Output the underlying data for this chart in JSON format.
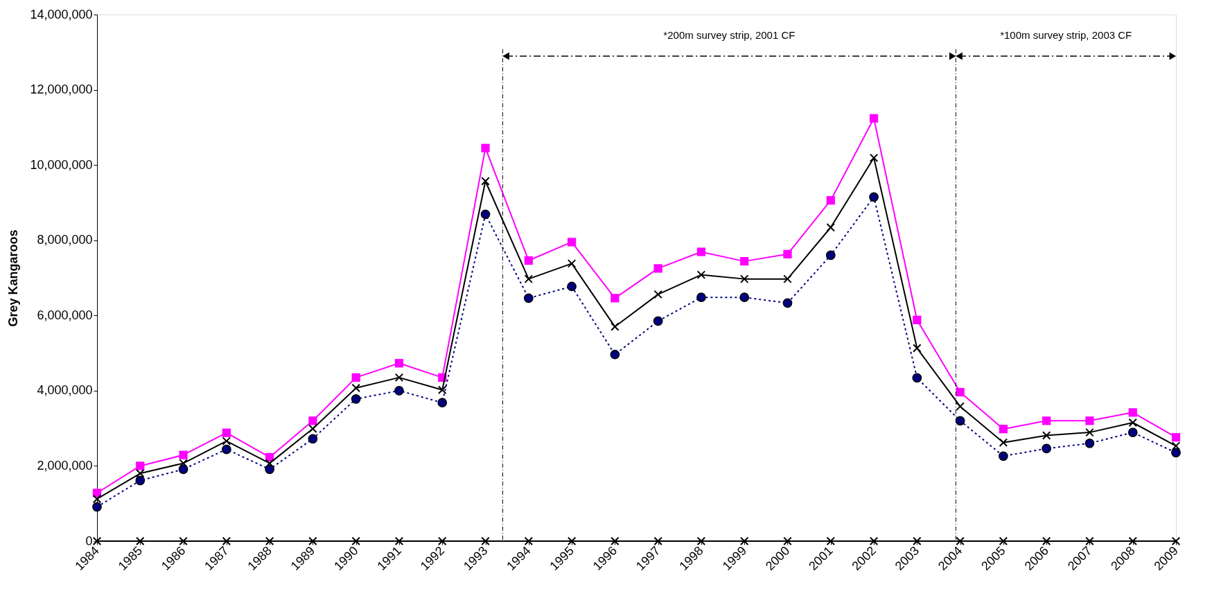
{
  "chart_data": {
    "type": "line",
    "ylabel": "Grey Kangaroos",
    "x": [
      1984,
      1985,
      1986,
      1987,
      1988,
      1989,
      1990,
      1991,
      1992,
      1993,
      1994,
      1995,
      1996,
      1997,
      1998,
      1999,
      2000,
      2001,
      2002,
      2003,
      2004,
      2005,
      2006,
      2007,
      2008,
      2009
    ],
    "xlim": [
      1984,
      2009
    ],
    "xticks": [
      1984,
      1985,
      1986,
      1987,
      1988,
      1989,
      1990,
      1991,
      1992,
      1993,
      1994,
      1995,
      1996,
      1997,
      1998,
      1999,
      2000,
      2001,
      2002,
      2003,
      2004,
      2005,
      2006,
      2007,
      2008,
      2009
    ],
    "ylim": [
      0,
      14000000
    ],
    "yticks": [
      0,
      {
        "value": 2000000,
        "label": "2,000,000"
      },
      {
        "value": 4000000,
        "label": "4,000,000"
      },
      {
        "value": 6000000,
        "label": "6,000,000"
      },
      {
        "value": 8000000,
        "label": "8,000,000"
      },
      {
        "value": 10000000,
        "label": "10,000,000"
      },
      {
        "value": 12000000,
        "label": "12,000,000"
      },
      {
        "value": 14000000,
        "label": "14,000,000"
      }
    ],
    "series": [
      {
        "color": "#ff00ff",
        "marker": "square",
        "line_style": "solid",
        "values": [
          1280000,
          2000000,
          2290000,
          2880000,
          2230000,
          3200000,
          4350000,
          4730000,
          4350000,
          10450000,
          7460000,
          7950000,
          6460000,
          7250000,
          7690000,
          7440000,
          7630000,
          9060000,
          11240000,
          5880000,
          3960000,
          2980000,
          3200000,
          3200000,
          3420000,
          2760000
        ]
      },
      {
        "color": "#000000",
        "marker": "cross",
        "line_style": "solid",
        "values": [
          1120000,
          1800000,
          2070000,
          2660000,
          2070000,
          2990000,
          4070000,
          4350000,
          4020000,
          9570000,
          6970000,
          7380000,
          5700000,
          6560000,
          7080000,
          6970000,
          6970000,
          8340000,
          10190000,
          5130000,
          3580000,
          2620000,
          2810000,
          2890000,
          3150000,
          2530000
        ]
      },
      {
        "color": "#000080",
        "marker": "circle",
        "line_style": "dotted",
        "values": [
          910000,
          1610000,
          1910000,
          2440000,
          1910000,
          2720000,
          3780000,
          4000000,
          3680000,
          8690000,
          6460000,
          6770000,
          4960000,
          5850000,
          6480000,
          6480000,
          6330000,
          7600000,
          9150000,
          4340000,
          3200000,
          2260000,
          2460000,
          2600000,
          2890000,
          2350000
        ]
      },
      {
        "color": "#000000",
        "marker": "cross",
        "line_style": "solid",
        "values": [
          0,
          0,
          0,
          0,
          0,
          0,
          0,
          0,
          0,
          0,
          0,
          0,
          0,
          0,
          0,
          0,
          0,
          0,
          0,
          0,
          0,
          0,
          0,
          0,
          0,
          0
        ]
      }
    ],
    "ref_lines": [
      {
        "axis": "x",
        "value": 1993.4,
        "line_style": "dashed",
        "color": "#000000"
      },
      {
        "axis": "x",
        "value": 2003.9,
        "line_style": "dashed",
        "color": "#000000"
      }
    ],
    "annotations": [
      "*200m survey strip, 2001 CF",
      "*100m survey strip, 2003 CF"
    ],
    "grid": false
  }
}
